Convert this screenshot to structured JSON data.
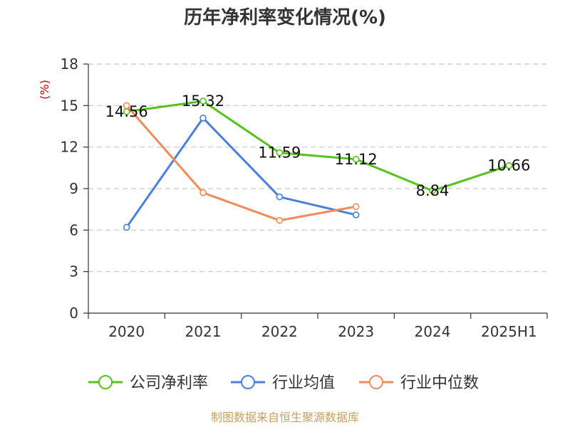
{
  "chart_data": {
    "type": "line",
    "title": "历年净利率变化情况(%)",
    "unit": "(%)",
    "categories": [
      "2020",
      "2021",
      "2022",
      "2023",
      "2024",
      "2025H1"
    ],
    "ylim": [
      0,
      18
    ],
    "yticks": [
      0,
      3,
      6,
      9,
      12,
      15,
      18
    ],
    "grid": true,
    "legend_position": "bottom",
    "series": [
      {
        "name": "公司净利率",
        "color": "#52c41a",
        "values": [
          14.56,
          15.32,
          11.59,
          11.12,
          8.84,
          10.66
        ],
        "labels": [
          "14.56",
          "15.32",
          "11.59",
          "11.12",
          "8.84",
          "10.66"
        ]
      },
      {
        "name": "行业均值",
        "color": "#4a7fdb",
        "values": [
          6.2,
          14.1,
          8.4,
          7.1,
          null,
          null
        ]
      },
      {
        "name": "行业中位数",
        "color": "#f08c5a",
        "values": [
          15.0,
          8.7,
          6.7,
          7.7,
          null,
          null
        ]
      }
    ]
  },
  "source": "制图数据来自恒生聚源数据库"
}
